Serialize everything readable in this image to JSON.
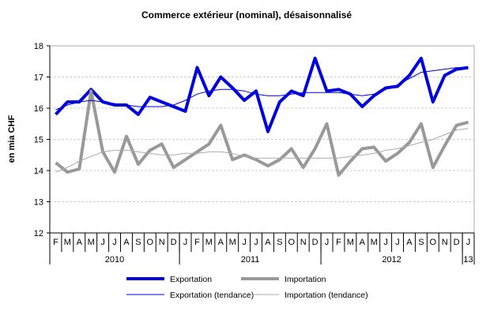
{
  "chart_data": {
    "type": "line",
    "title": "Commerce extérieur (nominal), désaisonnalisé",
    "ylabel": "en mia CHF",
    "ylim": [
      12,
      18
    ],
    "yticks": [
      12,
      13,
      14,
      15,
      16,
      17,
      18
    ],
    "grid": true,
    "months": [
      "F",
      "M",
      "A",
      "M",
      "J",
      "J",
      "A",
      "S",
      "O",
      "N",
      "D",
      "J",
      "F",
      "M",
      "A",
      "M",
      "J",
      "J",
      "A",
      "S",
      "O",
      "N",
      "D",
      "J",
      "F",
      "M",
      "A",
      "M",
      "J",
      "J",
      "A",
      "S",
      "O",
      "N",
      "D",
      "J"
    ],
    "years": [
      {
        "label": "2010",
        "count": 11
      },
      {
        "label": "2011",
        "count": 12
      },
      {
        "label": "2012",
        "count": 12
      },
      {
        "label": "13",
        "count": 1
      }
    ],
    "legend_position": "bottom",
    "series": [
      {
        "name": "Exportation",
        "color": "#0000dd",
        "width": 4,
        "values": [
          15.8,
          16.2,
          16.2,
          16.6,
          16.2,
          16.1,
          16.1,
          15.8,
          16.35,
          16.2,
          16.05,
          15.9,
          17.3,
          16.4,
          17.0,
          16.65,
          16.25,
          16.55,
          15.25,
          16.2,
          16.55,
          16.4,
          17.6,
          16.55,
          16.6,
          16.45,
          16.05,
          16.4,
          16.65,
          16.7,
          17.05,
          17.6,
          16.2,
          17.05,
          17.25,
          17.3
        ]
      },
      {
        "name": "Importation",
        "color": "#999999",
        "width": 4,
        "values": [
          14.25,
          13.95,
          14.05,
          16.55,
          14.6,
          13.95,
          15.1,
          14.2,
          14.65,
          14.85,
          14.1,
          14.35,
          14.6,
          14.85,
          15.45,
          14.35,
          14.5,
          14.35,
          14.15,
          14.35,
          14.7,
          14.1,
          14.7,
          15.5,
          13.85,
          14.3,
          14.7,
          14.75,
          14.3,
          14.55,
          14.9,
          15.5,
          14.1,
          14.8,
          15.45,
          15.55
        ]
      },
      {
        "name": "Exportation (tendance)",
        "color": "#0000dd",
        "width": 1,
        "values": [
          15.95,
          16.1,
          16.2,
          16.25,
          16.2,
          16.15,
          16.1,
          16.05,
          16.05,
          16.05,
          16.1,
          16.25,
          16.45,
          16.55,
          16.6,
          16.6,
          16.55,
          16.45,
          16.4,
          16.4,
          16.45,
          16.5,
          16.5,
          16.5,
          16.5,
          16.45,
          16.4,
          16.45,
          16.6,
          16.75,
          16.95,
          17.15,
          17.2,
          17.25,
          17.3,
          17.3
        ]
      },
      {
        "name": "Importation (tendance)",
        "color": "#aaaaaa",
        "width": 1,
        "values": [
          13.95,
          14.1,
          14.3,
          14.45,
          14.6,
          14.65,
          14.65,
          14.6,
          14.55,
          14.5,
          14.5,
          14.55,
          14.55,
          14.6,
          14.6,
          14.55,
          14.45,
          14.4,
          14.4,
          14.4,
          14.4,
          14.4,
          14.4,
          14.4,
          14.4,
          14.45,
          14.5,
          14.55,
          14.65,
          14.7,
          14.8,
          14.9,
          15.0,
          15.15,
          15.3,
          15.35
        ]
      }
    ]
  }
}
